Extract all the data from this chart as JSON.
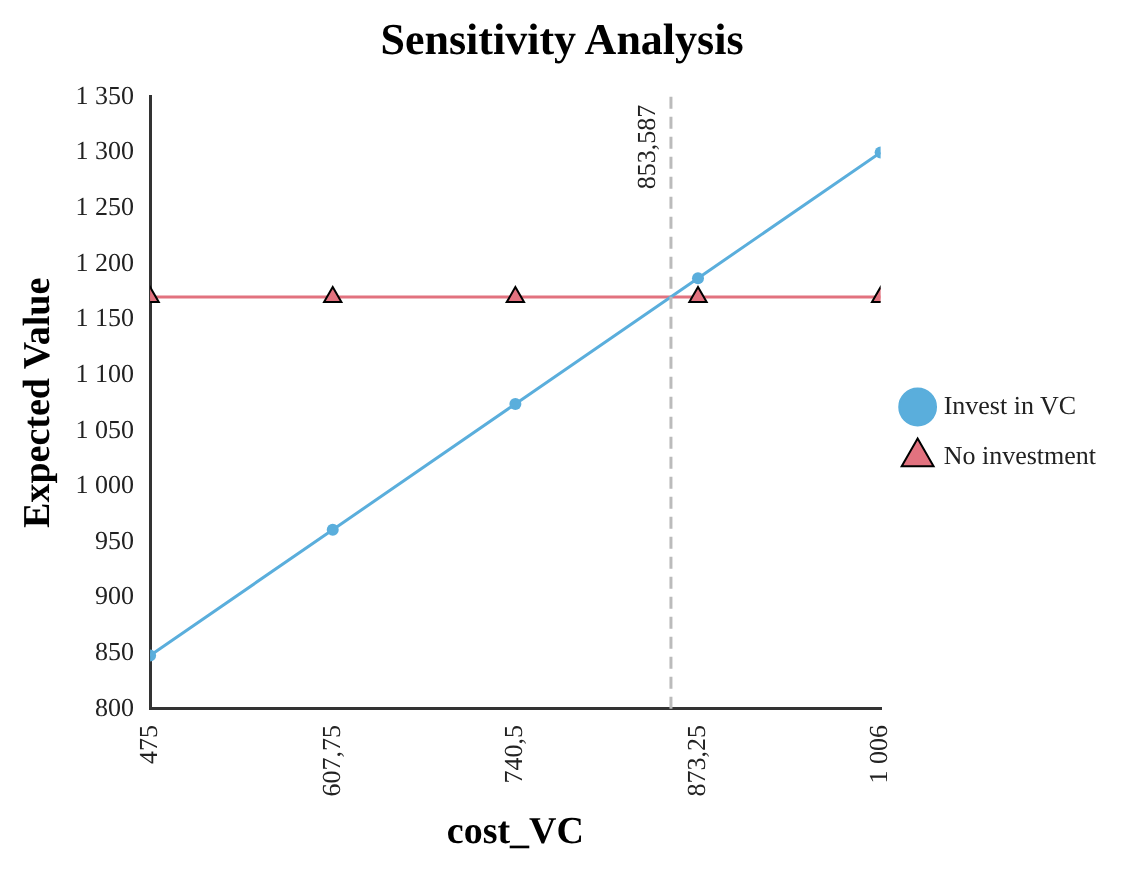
{
  "chart_data": {
    "type": "line",
    "title": "Sensitivity Analysis",
    "xlabel": "cost_VC",
    "ylabel": "Expected Value",
    "x": [
      475,
      607.75,
      740.5,
      873.25,
      1006
    ],
    "xlim": [
      475,
      1006
    ],
    "xticks": [
      475,
      {
        "value": 607.75,
        "label": "607,75"
      },
      {
        "value": 740.5,
        "label": "740,5"
      },
      {
        "value": 873.25,
        "label": "873,25"
      },
      {
        "value": 1006,
        "label": "1 006"
      }
    ],
    "ylim": [
      800,
      1350
    ],
    "yticks": [
      800,
      850,
      900,
      950,
      {
        "value": 1000,
        "label": "1 000"
      },
      {
        "value": 1050,
        "label": "1 050"
      },
      {
        "value": 1100,
        "label": "1 100"
      },
      {
        "value": 1150,
        "label": "1 150"
      },
      {
        "value": 1200,
        "label": "1 200"
      },
      {
        "value": 1250,
        "label": "1 250"
      },
      {
        "value": 1300,
        "label": "1 300"
      },
      {
        "value": 1350,
        "label": "1 350"
      }
    ],
    "series": [
      {
        "name": "Invest in VC",
        "color": "#5aaedc",
        "marker": "circle",
        "values": [
          848,
          961,
          1074,
          1187,
          1300
        ]
      },
      {
        "name": "No investment",
        "color": "#e2727f",
        "marker": "triangle",
        "values": [
          1170,
          1170,
          1170,
          1170,
          1170
        ]
      }
    ],
    "ref_lines": [
      {
        "axis": "x",
        "value": 853.587,
        "label": "853,587",
        "color": "#bbbbbb",
        "line_style": "dashed"
      }
    ],
    "grid": false,
    "legend": "right",
    "line_style": "solid"
  }
}
